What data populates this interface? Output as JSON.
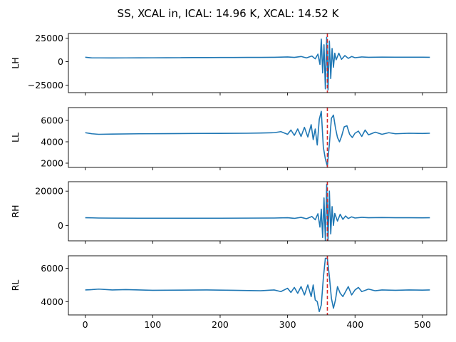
{
  "figure": {
    "title": "SS, XCAL in, ICAL: 14.96 K, XCAL: 14.52 K"
  },
  "chart_data": [
    {
      "type": "line",
      "ylabel": "LH",
      "xlim": [
        -25,
        536
      ],
      "ylim": [
        -33000,
        30000
      ],
      "yticks": [
        -25000,
        0,
        25000
      ],
      "yticklabels": [
        "−25000",
        "0",
        "25000"
      ],
      "baseline": 4000,
      "series": [
        {
          "color": "#1f77b4",
          "x": [
            0,
            10,
            20,
            40,
            60,
            80,
            100,
            120,
            140,
            160,
            180,
            200,
            220,
            240,
            260,
            280,
            290,
            300,
            310,
            320,
            328,
            336,
            341,
            345,
            348,
            350,
            352,
            354,
            356,
            358,
            360,
            362,
            364,
            366,
            368,
            370,
            372,
            376,
            380,
            385,
            390,
            395,
            400,
            410,
            420,
            440,
            460,
            480,
            500,
            511
          ],
          "y": [
            4700,
            4000,
            4000,
            3950,
            4000,
            4050,
            4100,
            4150,
            4200,
            4300,
            4350,
            4400,
            4450,
            4500,
            4550,
            4600,
            4800,
            5000,
            4500,
            5500,
            4000,
            6000,
            3000,
            8000,
            -3000,
            24000,
            -12000,
            18000,
            -29000,
            26000,
            -30000,
            22000,
            -18000,
            14000,
            -6000,
            9000,
            2000,
            9000,
            2500,
            6500,
            3500,
            5500,
            4200,
            5000,
            4600,
            4800,
            4700,
            4750,
            4700,
            4650
          ]
        }
      ],
      "vline_x": 359
    },
    {
      "type": "line",
      "ylabel": "LL",
      "xlim": [
        -25,
        536
      ],
      "ylim": [
        1600,
        7200
      ],
      "yticks": [
        2000,
        4000,
        6000
      ],
      "yticklabels": [
        "2000",
        "4000",
        "6000"
      ],
      "series": [
        {
          "color": "#1f77b4",
          "x": [
            0,
            10,
            20,
            40,
            80,
            120,
            160,
            200,
            240,
            260,
            280,
            290,
            300,
            305,
            310,
            315,
            320,
            325,
            330,
            335,
            338,
            341,
            344,
            347,
            350,
            353,
            356,
            359,
            362,
            365,
            368,
            371,
            374,
            377,
            380,
            384,
            388,
            392,
            396,
            400,
            405,
            410,
            415,
            420,
            430,
            440,
            450,
            460,
            480,
            500,
            511
          ],
          "y": [
            4850,
            4750,
            4700,
            4720,
            4750,
            4760,
            4780,
            4790,
            4800,
            4820,
            4850,
            4950,
            4700,
            5100,
            4600,
            5200,
            4500,
            5350,
            4450,
            5600,
            4200,
            5200,
            3700,
            6100,
            6850,
            3500,
            2400,
            1700,
            3800,
            6200,
            6500,
            5300,
            4400,
            4000,
            4500,
            5400,
            5500,
            4700,
            4400,
            4800,
            5000,
            4500,
            5100,
            4650,
            4900,
            4700,
            4850,
            4750,
            4800,
            4780,
            4800
          ]
        }
      ],
      "vline_x": 359
    },
    {
      "type": "line",
      "ylabel": "RH",
      "xlim": [
        -25,
        536
      ],
      "ylim": [
        -9000,
        25500
      ],
      "yticks": [
        0,
        20000
      ],
      "yticklabels": [
        "0",
        "20000"
      ],
      "series": [
        {
          "color": "#1f77b4",
          "x": [
            0,
            10,
            20,
            40,
            80,
            120,
            160,
            200,
            240,
            280,
            300,
            310,
            320,
            328,
            336,
            341,
            345,
            348,
            350,
            352,
            354,
            356,
            358,
            360,
            362,
            364,
            366,
            368,
            370,
            374,
            378,
            382,
            386,
            390,
            395,
            400,
            410,
            420,
            440,
            460,
            480,
            500,
            511
          ],
          "y": [
            4500,
            4400,
            4300,
            4250,
            4200,
            4200,
            4150,
            4200,
            4250,
            4300,
            4500,
            4100,
            4700,
            3900,
            5200,
            3300,
            6800,
            -1000,
            9500,
            -7000,
            16000,
            -9000,
            24000,
            -8500,
            20000,
            -5000,
            11000,
            0,
            7000,
            2500,
            6500,
            3500,
            5500,
            4000,
            5000,
            4300,
            4700,
            4500,
            4600,
            4500,
            4500,
            4450,
            4500
          ]
        }
      ],
      "vline_x": 359
    },
    {
      "type": "line",
      "ylabel": "RL",
      "xlim": [
        -25,
        536
      ],
      "ylim": [
        3200,
        6750
      ],
      "yticks": [
        4000,
        6000
      ],
      "yticklabels": [
        "4000",
        "6000"
      ],
      "series": [
        {
          "color": "#1f77b4",
          "x": [
            0,
            10,
            20,
            40,
            60,
            80,
            100,
            140,
            180,
            220,
            260,
            280,
            290,
            300,
            305,
            310,
            315,
            320,
            325,
            330,
            335,
            338,
            341,
            344,
            347,
            350,
            353,
            356,
            359,
            362,
            365,
            368,
            371,
            374,
            378,
            382,
            386,
            390,
            395,
            400,
            405,
            410,
            420,
            430,
            440,
            460,
            480,
            500,
            511
          ],
          "y": [
            4700,
            4720,
            4750,
            4700,
            4720,
            4700,
            4680,
            4690,
            4700,
            4680,
            4650,
            4700,
            4600,
            4800,
            4550,
            4850,
            4500,
            4900,
            4400,
            5000,
            4300,
            5000,
            4100,
            4000,
            3400,
            3800,
            5400,
            6600,
            6600,
            5500,
            4200,
            3600,
            4100,
            4900,
            4500,
            4300,
            4600,
            4900,
            4400,
            4700,
            4850,
            4600,
            4750,
            4650,
            4700,
            4680,
            4700,
            4690,
            4700
          ]
        }
      ],
      "vline_x": 359
    }
  ],
  "shared_x": {
    "ticks": [
      0,
      100,
      200,
      300,
      400,
      500
    ],
    "ticklabels": [
      "0",
      "100",
      "200",
      "300",
      "400",
      "500"
    ]
  }
}
